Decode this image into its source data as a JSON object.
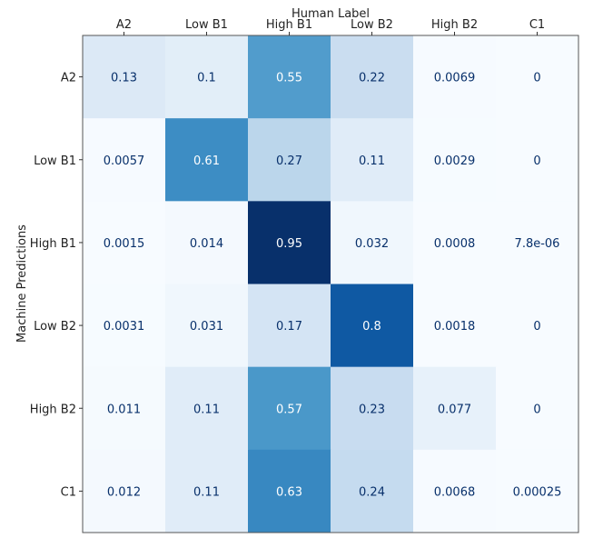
{
  "chart_data": {
    "type": "heatmap",
    "title": "",
    "xlabel": "Human Label",
    "ylabel": "Machine Predictions",
    "x_categories": [
      "A2",
      "Low B1",
      "High B1",
      "Low B2",
      "High B2",
      "C1"
    ],
    "y_categories": [
      "A2",
      "Low B1",
      "High B1",
      "Low B2",
      "High B2",
      "C1"
    ],
    "values": [
      [
        0.13,
        0.1,
        0.55,
        0.22,
        0.0069,
        0
      ],
      [
        0.0057,
        0.61,
        0.27,
        0.11,
        0.0029,
        0
      ],
      [
        0.0015,
        0.014,
        0.95,
        0.032,
        0.0008,
        7.8e-06
      ],
      [
        0.0031,
        0.031,
        0.17,
        0.8,
        0.0018,
        0
      ],
      [
        0.011,
        0.11,
        0.57,
        0.23,
        0.077,
        0
      ],
      [
        0.012,
        0.11,
        0.63,
        0.24,
        0.0068,
        0.00025
      ]
    ],
    "labels": [
      [
        "0.13",
        "0.1",
        "0.55",
        "0.22",
        "0.0069",
        "0"
      ],
      [
        "0.0057",
        "0.61",
        "0.27",
        "0.11",
        "0.0029",
        "0"
      ],
      [
        "0.0015",
        "0.014",
        "0.95",
        "0.032",
        "0.0008",
        "7.8e-06"
      ],
      [
        "0.0031",
        "0.031",
        "0.17",
        "0.8",
        "0.0018",
        "0"
      ],
      [
        "0.011",
        "0.11",
        "0.57",
        "0.23",
        "0.077",
        "0"
      ],
      [
        "0.012",
        "0.11",
        "0.63",
        "0.24",
        "0.0068",
        "0.00025"
      ]
    ],
    "colormap": "Blues",
    "value_range": [
      0,
      0.95
    ],
    "x_axis_position": "top",
    "text_color": "#08306b"
  }
}
